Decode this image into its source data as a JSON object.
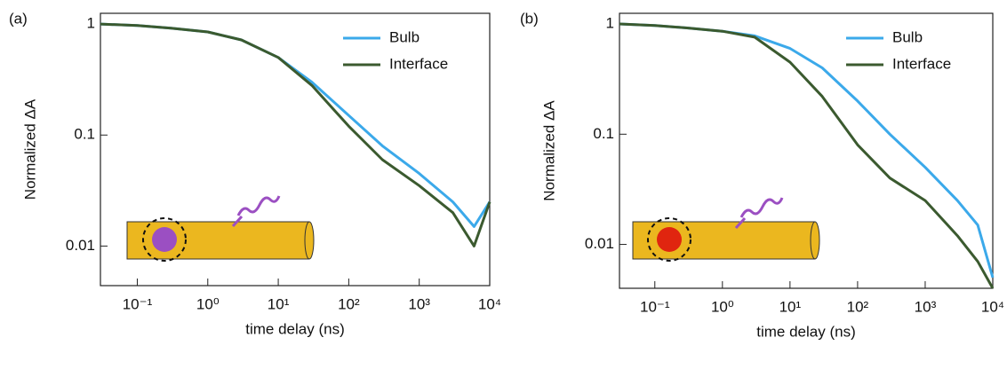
{
  "chart_data": [
    {
      "type": "line",
      "panel_label": "(a)",
      "xlabel": "time delay (ns)",
      "ylabel": "Normalized ΔA",
      "log_x": true,
      "log_y": true,
      "x": [
        0.03,
        0.1,
        0.3,
        1,
        3,
        10,
        30,
        100,
        300,
        1000,
        3000,
        6000,
        10000
      ],
      "series": [
        {
          "name": "Bulb",
          "color": "#3ba9ea",
          "values": [
            1,
            0.97,
            0.92,
            0.85,
            0.72,
            0.5,
            0.3,
            0.15,
            0.08,
            0.045,
            0.025,
            0.015,
            0.025
          ]
        },
        {
          "name": "Interface",
          "color": "#3b5a2f",
          "values": [
            1,
            0.97,
            0.92,
            0.85,
            0.72,
            0.5,
            0.28,
            0.12,
            0.06,
            0.035,
            0.02,
            0.01,
            0.025
          ]
        }
      ],
      "xlim": [
        0.03,
        10000
      ],
      "ylim": [
        0.0044,
        1.25
      ],
      "xticks": [
        {
          "value": 0.1,
          "label": "10⁻¹"
        },
        {
          "value": 1,
          "label": "10⁰"
        },
        {
          "value": 10,
          "label": "10¹"
        },
        {
          "value": 100,
          "label": "10²"
        },
        {
          "value": 1000,
          "label": "10³"
        },
        {
          "value": 10000,
          "label": "10⁴"
        }
      ],
      "yticks": [
        0.01,
        0.1,
        1
      ],
      "legend": "upper right"
    },
    {
      "type": "line",
      "panel_label": "(b)",
      "xlabel": "time delay (ns)",
      "ylabel": "Normalized ΔA",
      "log_x": true,
      "log_y": true,
      "x": [
        0.03,
        0.1,
        0.3,
        1,
        3,
        10,
        30,
        100,
        300,
        1000,
        3000,
        6000,
        10000
      ],
      "series": [
        {
          "name": "Bulb",
          "color": "#3ba9ea",
          "values": [
            1,
            0.97,
            0.92,
            0.86,
            0.78,
            0.6,
            0.4,
            0.2,
            0.1,
            0.05,
            0.025,
            0.015,
            0.005
          ]
        },
        {
          "name": "Interface",
          "color": "#3b5a2f",
          "values": [
            1,
            0.97,
            0.92,
            0.86,
            0.76,
            0.45,
            0.22,
            0.08,
            0.04,
            0.025,
            0.012,
            0.007,
            0.004
          ]
        }
      ],
      "xlim": [
        0.03,
        10000
      ],
      "ylim": [
        0.004,
        1.25
      ],
      "xticks": [
        {
          "value": 0.1,
          "label": "10⁻¹"
        },
        {
          "value": 1,
          "label": "10⁰"
        },
        {
          "value": 10,
          "label": "10¹"
        },
        {
          "value": 100,
          "label": "10²"
        },
        {
          "value": 1000,
          "label": "10³"
        },
        {
          "value": 10000,
          "label": "10⁴"
        }
      ],
      "yticks": [
        0.01,
        0.1,
        1
      ],
      "legend": "upper right"
    }
  ]
}
